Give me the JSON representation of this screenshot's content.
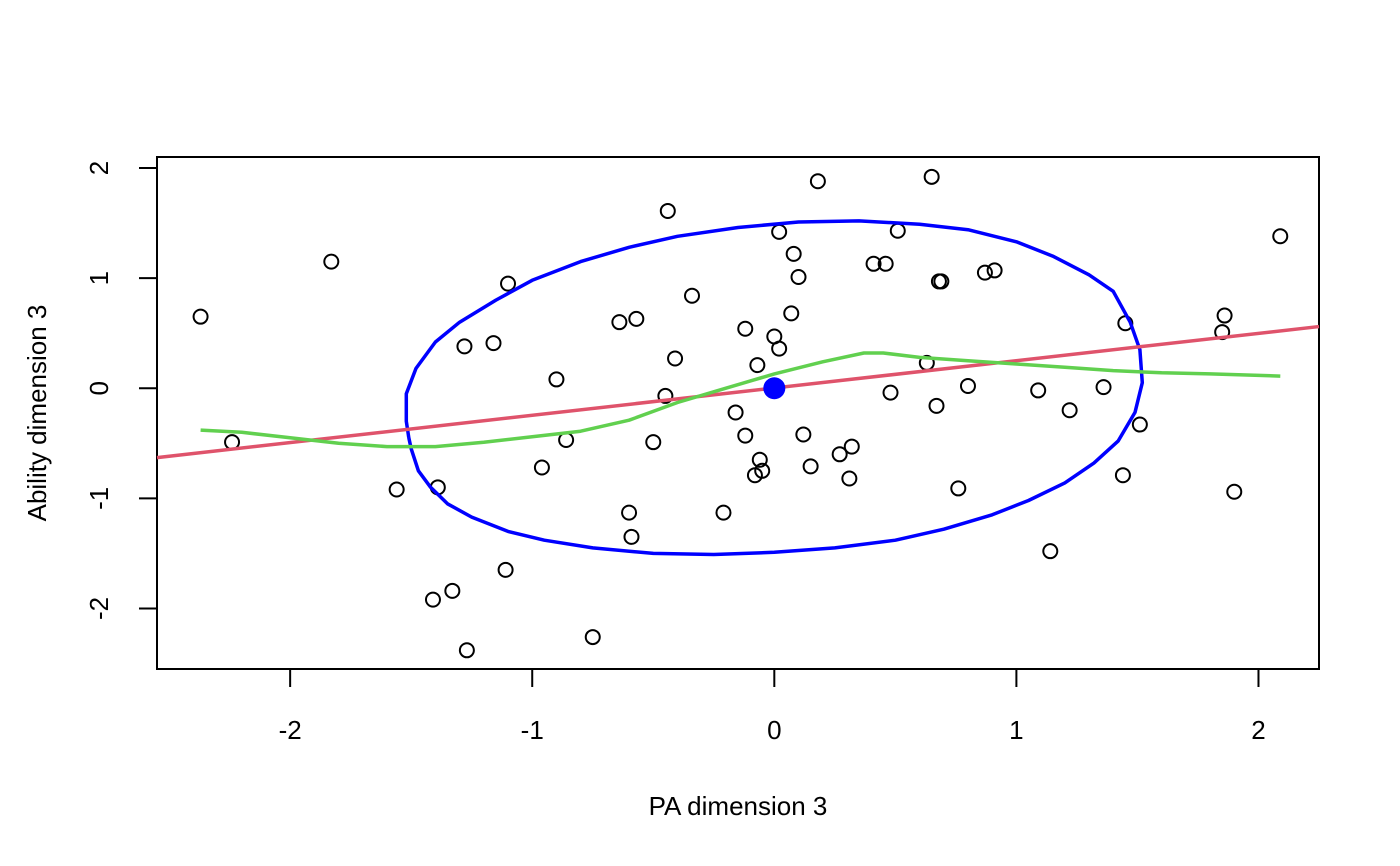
{
  "chart_data": {
    "type": "scatter",
    "title": "",
    "xlabel": "PA dimension 3",
    "ylabel": "Ability dimension 3",
    "xlim": [
      -2.55,
      2.25
    ],
    "ylim": [
      -2.55,
      2.1
    ],
    "xticks": [
      -2,
      -1,
      0,
      1,
      2
    ],
    "yticks": [
      -2,
      -1,
      0,
      1,
      2
    ],
    "xtick_labels": [
      "-2",
      "-1",
      "0",
      "1",
      "2"
    ],
    "ytick_labels": [
      "-2",
      "-1",
      "0",
      "1",
      "2"
    ],
    "grid": false,
    "legend": "none",
    "points": [
      [
        -2.37,
        0.65
      ],
      [
        -2.24,
        -0.49
      ],
      [
        -1.83,
        1.15
      ],
      [
        -1.56,
        -0.92
      ],
      [
        -1.39,
        -0.9
      ],
      [
        -1.41,
        -1.92
      ],
      [
        -1.33,
        -1.84
      ],
      [
        -1.28,
        0.38
      ],
      [
        -1.27,
        -2.38
      ],
      [
        -1.16,
        0.41
      ],
      [
        -1.1,
        0.95
      ],
      [
        -1.11,
        -1.65
      ],
      [
        -0.96,
        -0.72
      ],
      [
        -0.9,
        0.08
      ],
      [
        -0.86,
        -0.47
      ],
      [
        -0.75,
        -2.26
      ],
      [
        -0.64,
        0.6
      ],
      [
        -0.6,
        -1.13
      ],
      [
        -0.59,
        -1.35
      ],
      [
        -0.57,
        0.63
      ],
      [
        -0.5,
        -0.49
      ],
      [
        -0.45,
        -0.07
      ],
      [
        -0.44,
        1.61
      ],
      [
        -0.41,
        0.27
      ],
      [
        -0.34,
        0.84
      ],
      [
        -0.21,
        -1.13
      ],
      [
        -0.16,
        -0.22
      ],
      [
        -0.12,
        0.54
      ],
      [
        -0.12,
        -0.43
      ],
      [
        -0.07,
        0.21
      ],
      [
        -0.08,
        -0.79
      ],
      [
        -0.06,
        -0.65
      ],
      [
        -0.05,
        -0.75
      ],
      [
        0.0,
        0.47
      ],
      [
        0.02,
        0.36
      ],
      [
        0.02,
        1.42
      ],
      [
        0.07,
        0.68
      ],
      [
        0.08,
        1.22
      ],
      [
        0.1,
        1.01
      ],
      [
        0.12,
        -0.42
      ],
      [
        0.15,
        -0.71
      ],
      [
        0.18,
        1.88
      ],
      [
        0.27,
        -0.6
      ],
      [
        0.31,
        -0.82
      ],
      [
        0.32,
        -0.53
      ],
      [
        0.41,
        1.13
      ],
      [
        0.46,
        1.13
      ],
      [
        0.48,
        -0.04
      ],
      [
        0.51,
        1.43
      ],
      [
        0.63,
        0.23
      ],
      [
        0.65,
        1.92
      ],
      [
        0.67,
        -0.16
      ],
      [
        0.68,
        0.97
      ],
      [
        0.69,
        0.97
      ],
      [
        0.76,
        -0.91
      ],
      [
        0.8,
        0.02
      ],
      [
        0.87,
        1.05
      ],
      [
        0.91,
        1.07
      ],
      [
        1.09,
        -0.02
      ],
      [
        1.14,
        -1.48
      ],
      [
        1.22,
        -0.2
      ],
      [
        1.36,
        0.01
      ],
      [
        1.44,
        -0.79
      ],
      [
        1.45,
        0.59
      ],
      [
        1.51,
        -0.33
      ],
      [
        1.85,
        0.51
      ],
      [
        1.86,
        0.66
      ],
      [
        1.9,
        -0.94
      ],
      [
        2.09,
        1.38
      ]
    ],
    "centroid": [
      0,
      0
    ],
    "ellipse": {
      "color": "#0000FF",
      "path": [
        [
          -1.51,
          -0.45
        ],
        [
          -1.5,
          -0.55
        ],
        [
          -1.47,
          -0.75
        ],
        [
          -1.42,
          -0.9
        ],
        [
          -1.35,
          -1.05
        ],
        [
          -1.25,
          -1.17
        ],
        [
          -1.1,
          -1.3
        ],
        [
          -0.95,
          -1.38
        ],
        [
          -0.75,
          -1.45
        ],
        [
          -0.5,
          -1.5
        ],
        [
          -0.25,
          -1.51
        ],
        [
          0.0,
          -1.49
        ],
        [
          0.25,
          -1.45
        ],
        [
          0.5,
          -1.38
        ],
        [
          0.7,
          -1.28
        ],
        [
          0.9,
          -1.15
        ],
        [
          1.05,
          -1.02
        ],
        [
          1.2,
          -0.86
        ],
        [
          1.32,
          -0.68
        ],
        [
          1.42,
          -0.48
        ],
        [
          1.49,
          -0.22
        ],
        [
          1.52,
          0.05
        ],
        [
          1.51,
          0.35
        ],
        [
          1.47,
          0.6
        ],
        [
          1.4,
          0.88
        ],
        [
          1.3,
          1.03
        ],
        [
          1.15,
          1.2
        ],
        [
          1.0,
          1.33
        ],
        [
          0.8,
          1.44
        ],
        [
          0.6,
          1.49
        ],
        [
          0.35,
          1.52
        ],
        [
          0.1,
          1.51
        ],
        [
          -0.15,
          1.46
        ],
        [
          -0.4,
          1.38
        ],
        [
          -0.6,
          1.28
        ],
        [
          -0.8,
          1.15
        ],
        [
          -1.0,
          0.98
        ],
        [
          -1.15,
          0.8
        ],
        [
          -1.3,
          0.6
        ],
        [
          -1.4,
          0.42
        ],
        [
          -1.48,
          0.18
        ],
        [
          -1.52,
          -0.05
        ],
        [
          -1.52,
          -0.3
        ],
        [
          -1.51,
          -0.45
        ]
      ]
    },
    "regression_line": {
      "color": "#DF536B",
      "points": [
        [
          -2.55,
          -0.63
        ],
        [
          2.25,
          0.56
        ]
      ]
    },
    "smooth_line": {
      "color": "#61D04F",
      "points": [
        [
          -2.37,
          -0.38
        ],
        [
          -2.2,
          -0.4
        ],
        [
          -2.0,
          -0.45
        ],
        [
          -1.8,
          -0.5
        ],
        [
          -1.6,
          -0.53
        ],
        [
          -1.4,
          -0.53
        ],
        [
          -1.2,
          -0.49
        ],
        [
          -1.0,
          -0.44
        ],
        [
          -0.8,
          -0.39
        ],
        [
          -0.6,
          -0.29
        ],
        [
          -0.4,
          -0.13
        ],
        [
          -0.2,
          0.0
        ],
        [
          0.0,
          0.13
        ],
        [
          0.2,
          0.24
        ],
        [
          0.37,
          0.32
        ],
        [
          0.45,
          0.32
        ],
        [
          0.6,
          0.28
        ],
        [
          0.8,
          0.25
        ],
        [
          1.0,
          0.22
        ],
        [
          1.2,
          0.19
        ],
        [
          1.4,
          0.16
        ],
        [
          1.6,
          0.14
        ],
        [
          1.8,
          0.13
        ],
        [
          2.09,
          0.11
        ]
      ]
    },
    "colors": {
      "points": "#000000",
      "centroid": "#0000FF",
      "axes": "#000000"
    }
  }
}
